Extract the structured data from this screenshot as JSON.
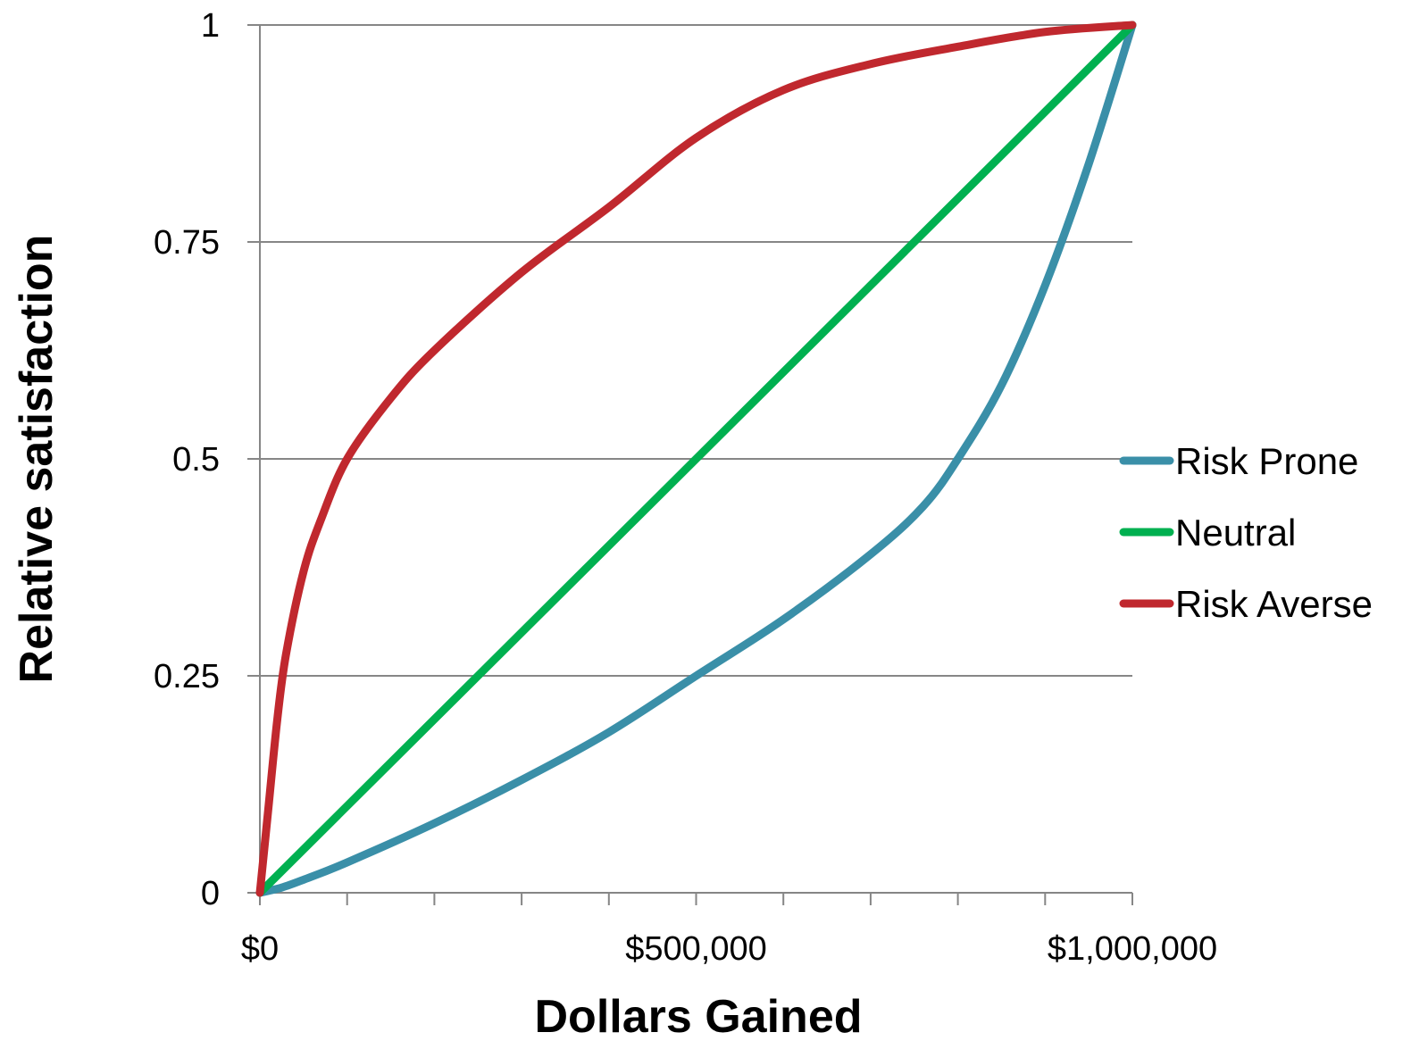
{
  "chart_data": {
    "type": "line",
    "title": "",
    "xlabel": "Dollars Gained",
    "ylabel": "Relative satisfaction",
    "xlim": [
      0,
      1000000
    ],
    "ylim": [
      0,
      1
    ],
    "x_ticks": [
      0,
      500000,
      1000000
    ],
    "x_tick_labels": [
      "$0",
      "$500,000",
      "$1,000,000"
    ],
    "x_minor_tick_step": 100000,
    "y_ticks": [
      0,
      0.25,
      0.5,
      0.75,
      1
    ],
    "y_tick_labels": [
      "0",
      "0.25",
      "0.5",
      "0.75",
      "1"
    ],
    "grid": "horizontal",
    "legend_position": "right",
    "series": [
      {
        "name": "Risk Prone",
        "color": "#3a8fa8",
        "points": [
          [
            0,
            0
          ],
          [
            25000,
            0.006
          ],
          [
            50000,
            0.015
          ],
          [
            100000,
            0.035
          ],
          [
            200000,
            0.08
          ],
          [
            300000,
            0.13
          ],
          [
            400000,
            0.185
          ],
          [
            500000,
            0.25
          ],
          [
            600000,
            0.315
          ],
          [
            700000,
            0.39
          ],
          [
            760000,
            0.445
          ],
          [
            800000,
            0.5
          ],
          [
            850000,
            0.585
          ],
          [
            900000,
            0.7
          ],
          [
            950000,
            0.84
          ],
          [
            1000000,
            1
          ]
        ]
      },
      {
        "name": "Neutral",
        "color": "#00b050",
        "points": [
          [
            0,
            0
          ],
          [
            1000000,
            1
          ]
        ]
      },
      {
        "name": "Risk Averse",
        "color": "#c0282e",
        "points": [
          [
            0,
            0
          ],
          [
            5000,
            0.05
          ],
          [
            10000,
            0.1
          ],
          [
            20000,
            0.2
          ],
          [
            30000,
            0.275
          ],
          [
            50000,
            0.37
          ],
          [
            70000,
            0.43
          ],
          [
            100000,
            0.5
          ],
          [
            150000,
            0.57
          ],
          [
            200000,
            0.625
          ],
          [
            300000,
            0.715
          ],
          [
            400000,
            0.79
          ],
          [
            500000,
            0.87
          ],
          [
            600000,
            0.925
          ],
          [
            700000,
            0.955
          ],
          [
            800000,
            0.975
          ],
          [
            900000,
            0.992
          ],
          [
            1000000,
            1
          ]
        ]
      }
    ]
  }
}
